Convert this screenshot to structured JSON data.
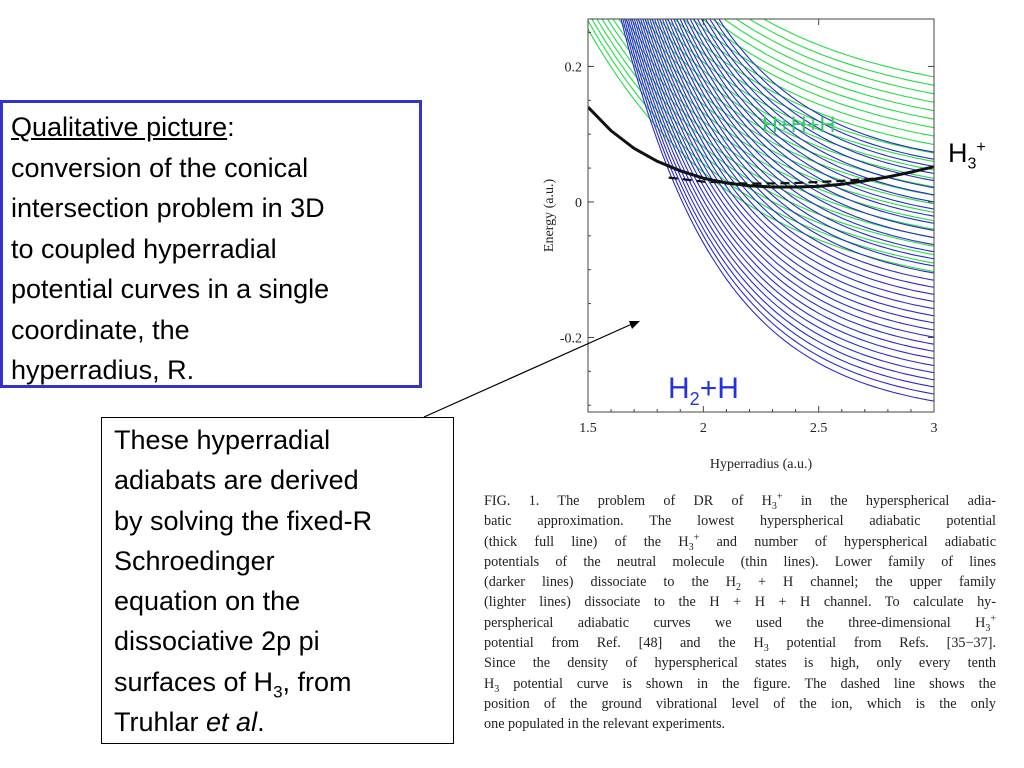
{
  "box1": {
    "title": "Qualitative picture",
    "colon": ":",
    "lines": [
      "conversion of the conical",
      "intersection problem in 3D",
      "to coupled hyperradial",
      "potential curves in a single",
      "coordinate, the",
      "hyperradius, R."
    ]
  },
  "box2": {
    "lines": [
      "These hyperradial",
      "adiabats are derived",
      "by solving the fixed-R",
      "Schroedinger",
      "equation on the",
      "dissociative 2p pi"
    ],
    "line7_pre": "surfaces of H",
    "line7_sub": "3",
    "line7_post": ", from",
    "line8_pre": "Truhlar ",
    "line8_em": "et al",
    "line8_post": "."
  },
  "callouts": {
    "hhh": "H+H+H",
    "h3_base": "H",
    "h3_sub": "3",
    "h3_sup": "+",
    "h2h_base": "H",
    "h2h_sub": "2",
    "h2h_post": "+H"
  },
  "caption": {
    "l1a": "FIG. 1. The problem of DR of H",
    "l1sub": "3",
    "l1sup": "+",
    "l1b": " in the hyperspherical adia-",
    "l2": "batic approximation. The lowest hyperspherical adiabatic potential",
    "l3a": "(thick full line) of the H",
    "l3sub": "3",
    "l3sup": "+",
    "l3b": " and number of hyperspherical adiabatic",
    "l4": "potentials of the neutral molecule (thin lines). Lower family of lines",
    "l5a": "(darker lines) dissociate to the H",
    "l5sub": "2",
    "l5b": " + H channel; the upper family",
    "l6": "(lighter lines) dissociate to the H + H + H channel. To calculate hy-",
    "l7a": "perspherical adiabatic curves we used the three-dimensional H",
    "l7sub": "3",
    "l7sup": "+",
    "l8a": "potential from Ref. [48] and the H",
    "l8sub": "3",
    "l8b": " potential from Refs. [35−37].",
    "l9": "Since the density of hyperspherical states is high, only every tenth",
    "l10a": "H",
    "l10sub": "3",
    "l10b": " potential curve is shown in the figure. The dashed line shows the",
    "l11": "position of the ground vibrational level of the ion, which is the only",
    "l12": "one populated in the relevant experiments."
  },
  "chart_data": {
    "type": "line",
    "title": "",
    "xlabel": "Hyperradius (a.u.)",
    "ylabel": "Energy (a.u.)",
    "xlim": [
      1.5,
      3.0
    ],
    "ylim": [
      -0.31,
      0.27
    ],
    "xticks": [
      1.5,
      2,
      2.5,
      3
    ],
    "xtick_labels": [
      "1.5",
      "2",
      "2.5",
      "3"
    ],
    "yticks": [
      -0.2,
      0,
      0.2
    ],
    "ytick_labels": [
      "-0.2",
      "0",
      "0.2"
    ],
    "colors": {
      "blue": "#2b2bcc",
      "green": "#22dd44",
      "black": "#111111"
    },
    "blue_family": {
      "A": 0.82,
      "k": 2.3,
      "C_min": -0.32,
      "C_step": 0.0105,
      "count": 36,
      "asymptote_label": "H2+H"
    },
    "green_family": {
      "A": 0.4,
      "k": 1.5,
      "C_min": -0.145,
      "C_step": 0.0125,
      "count": 24,
      "asymptote_label": "H+H+H"
    },
    "series": [
      {
        "name": "H3+",
        "style": "thick-solid",
        "x": [
          1.5,
          1.6,
          1.7,
          1.8,
          1.9,
          2.0,
          2.1,
          2.2,
          2.3,
          2.4,
          2.5,
          2.6,
          2.7,
          2.8,
          2.9,
          3.0
        ],
        "y": [
          0.14,
          0.105,
          0.079,
          0.06,
          0.046,
          0.035,
          0.028,
          0.024,
          0.022,
          0.022,
          0.023,
          0.026,
          0.031,
          0.037,
          0.044,
          0.052
        ]
      },
      {
        "name": "ground vibrational level",
        "style": "dashed",
        "x": [
          1.85,
          2.0,
          2.2,
          2.4,
          2.6,
          2.8
        ],
        "y": [
          0.036,
          0.03,
          0.027,
          0.028,
          0.031,
          0.036
        ]
      }
    ]
  }
}
